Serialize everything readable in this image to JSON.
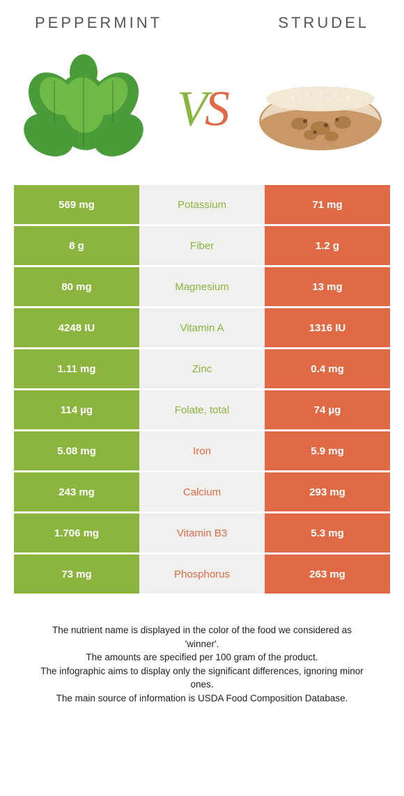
{
  "infographic": {
    "left_title": "Peppermint",
    "right_title": "Strudel",
    "vs_v": "V",
    "vs_s": "S",
    "colors": {
      "left": "#8bb53f",
      "right": "#e06a45",
      "mid_bg": "#f0f0ee"
    },
    "rows": [
      {
        "left": "569 mg",
        "label": "Potassium",
        "right": "71 mg",
        "winner": "left"
      },
      {
        "left": "8 g",
        "label": "Fiber",
        "right": "1.2 g",
        "winner": "left"
      },
      {
        "left": "80 mg",
        "label": "Magnesium",
        "right": "13 mg",
        "winner": "left"
      },
      {
        "left": "4248 IU",
        "label": "Vitamin A",
        "right": "1316 IU",
        "winner": "left"
      },
      {
        "left": "1.11 mg",
        "label": "Zinc",
        "right": "0.4 mg",
        "winner": "left"
      },
      {
        "left": "114 µg",
        "label": "Folate, total",
        "right": "74 µg",
        "winner": "left"
      },
      {
        "left": "5.08 mg",
        "label": "Iron",
        "right": "5.9 mg",
        "winner": "right"
      },
      {
        "left": "243 mg",
        "label": "Calcium",
        "right": "293 mg",
        "winner": "right"
      },
      {
        "left": "1.706 mg",
        "label": "Vitamin B3",
        "right": "5.3 mg",
        "winner": "right"
      },
      {
        "left": "73 mg",
        "label": "Phosphorus",
        "right": "263 mg",
        "winner": "right"
      }
    ],
    "footnotes": [
      "The nutrient name is displayed in the color of the food we considered as 'winner'.",
      "The amounts are specified per 100 gram of the product.",
      "The infographic aims to display only the significant differences, ignoring minor ones.",
      "The main source of information is USDA Food Composition Database."
    ]
  }
}
